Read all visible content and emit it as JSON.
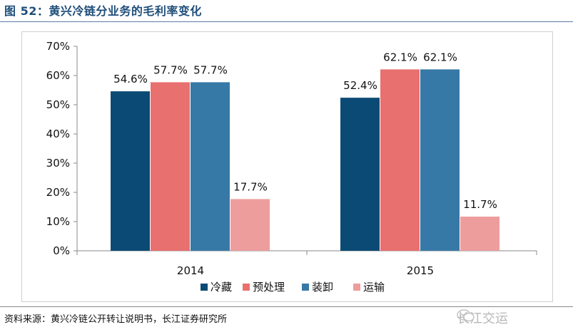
{
  "header": {
    "title": "图 52：黄兴冷链分业务的毛利率变化"
  },
  "footer": {
    "source": "资料来源：黄兴冷链公开转让说明书，长江证券研究所",
    "watermark": "长江交运"
  },
  "colors": {
    "title": "#1f4e79",
    "series": [
      "#0b4a75",
      "#e8706f",
      "#3679a7",
      "#ee9d9d"
    ]
  },
  "chart_data": {
    "type": "bar",
    "title": "",
    "categories": [
      "2014",
      "2015"
    ],
    "series": [
      {
        "name": "冷藏",
        "values": [
          54.6,
          52.4
        ],
        "labels": [
          "54.6%",
          "52.4%"
        ]
      },
      {
        "name": "预处理",
        "values": [
          57.7,
          62.1
        ],
        "labels": [
          "57.7%",
          "62.1%"
        ]
      },
      {
        "name": "装卸",
        "values": [
          57.7,
          62.1
        ],
        "labels": [
          "57.7%",
          "62.1%"
        ]
      },
      {
        "name": "运输",
        "values": [
          17.7,
          11.7
        ],
        "labels": [
          "17.7%",
          "11.7%"
        ]
      }
    ],
    "ylim": [
      0,
      70
    ],
    "yticks": [
      0,
      10,
      20,
      30,
      40,
      50,
      60,
      70
    ],
    "ytick_labels": [
      "0%",
      "10%",
      "20%",
      "30%",
      "40%",
      "50%",
      "60%",
      "70%"
    ],
    "legend_position": "bottom",
    "xlabel": "",
    "ylabel": ""
  }
}
